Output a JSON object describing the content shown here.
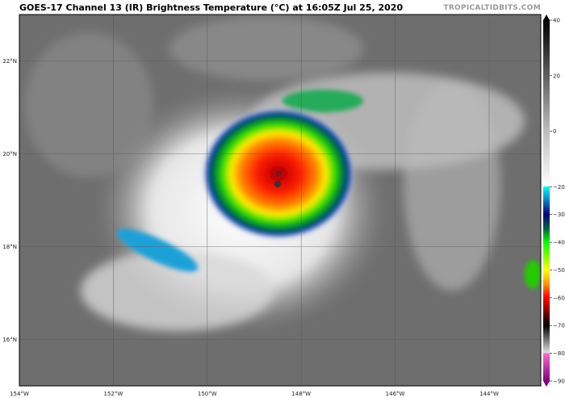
{
  "header": {
    "title": "GOES-17 Channel 13 (IR) Brightness Temperature (°C) at 16:05Z Jul 25, 2020",
    "credit": "TROPICALTIDBITS.COM"
  },
  "map": {
    "longitude_labels": [
      "154°W",
      "152°W",
      "150°W",
      "148°W",
      "146°W",
      "144°W"
    ],
    "longitude_values": [
      -154,
      -152,
      -150,
      -148,
      -146,
      -144
    ],
    "latitude_labels": [
      "22°N",
      "20°N",
      "18°N",
      "16°N"
    ],
    "latitude_values": [
      22,
      20,
      18,
      16
    ],
    "extent": {
      "lon": [
        -154,
        -142.9
      ],
      "lat": [
        15.0,
        23.0
      ]
    }
  },
  "colorbar": {
    "unit": "°C",
    "range": [
      -90,
      40
    ],
    "tick_labels": [
      "40",
      "20",
      "0",
      "−20",
      "−30",
      "−40",
      "−50",
      "−60",
      "−70",
      "−80",
      "−90"
    ],
    "tick_values": [
      40,
      20,
      0,
      -20,
      -30,
      -40,
      -50,
      -60,
      -70,
      -80,
      -90
    ],
    "color_stops": [
      {
        "value": 40,
        "color": "#000000"
      },
      {
        "value": 0,
        "color": "#bdbdbd"
      },
      {
        "value": -19.9,
        "color": "#ffffff"
      },
      {
        "value": -20,
        "color": "#00ffff"
      },
      {
        "value": -30,
        "color": "#000080"
      },
      {
        "value": -35,
        "color": "#006040"
      },
      {
        "value": -40,
        "color": "#00ff00"
      },
      {
        "value": -50,
        "color": "#ffff00"
      },
      {
        "value": -55,
        "color": "#ff9900"
      },
      {
        "value": -60,
        "color": "#ff0000"
      },
      {
        "value": -70,
        "color": "#000000"
      },
      {
        "value": -79.9,
        "color": "#e0e0e0"
      },
      {
        "value": -80,
        "color": "#ff66cc"
      },
      {
        "value": -90,
        "color": "#800080"
      }
    ]
  }
}
